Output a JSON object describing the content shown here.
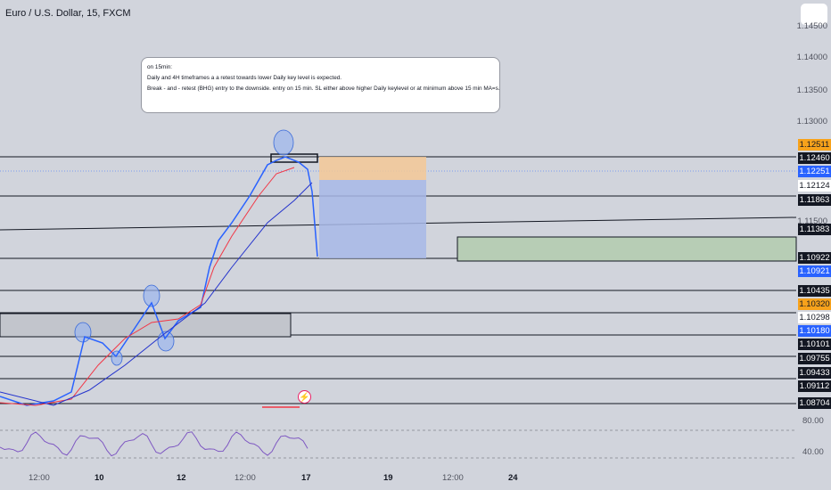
{
  "title": "Euro / U.S. Dollar, 15, FXCM",
  "note": {
    "line1": "on 15min:",
    "line2": "Daily and 4H timeframes a a retest towards lower Daily key level is expected.",
    "line3": "Break - and - retest (BHG) entry to the downside. entry on 15 min. SL either above higher Daily keylevel or at minimum above 15 min MA=s."
  },
  "price_ticks": [
    "1.14500",
    "1.14000",
    "1.13500",
    "1.13000",
    "1.11500"
  ],
  "price_badges": [
    {
      "label": "1.12511",
      "color": "#f7a21b",
      "text_color": "#131722"
    },
    {
      "label": "1.12460",
      "color": "#131722",
      "text_color": "#ffffff"
    },
    {
      "label": "1.12251",
      "color": "#2962ff",
      "text_color": "#ffffff"
    },
    {
      "label": "1.12124",
      "color": "#ffffff",
      "text_color": "#131722"
    },
    {
      "label": "1.11863",
      "color": "#131722",
      "text_color": "#ffffff"
    },
    {
      "label": "1.11383",
      "color": "#131722",
      "text_color": "#ffffff"
    },
    {
      "label": "1.10922",
      "color": "#131722",
      "text_color": "#ffffff"
    },
    {
      "label": "1.10921",
      "color": "#2962ff",
      "text_color": "#ffffff"
    },
    {
      "label": "1.10435",
      "color": "#131722",
      "text_color": "#ffffff"
    },
    {
      "label": "1.10320",
      "color": "#f7a21b",
      "text_color": "#131722"
    },
    {
      "label": "1.10298",
      "color": "#ffffff",
      "text_color": "#131722"
    },
    {
      "label": "1.10180",
      "color": "#2962ff",
      "text_color": "#ffffff"
    },
    {
      "label": "1.10101",
      "color": "#131722",
      "text_color": "#ffffff"
    },
    {
      "label": "1.09755",
      "color": "#131722",
      "text_color": "#ffffff"
    },
    {
      "label": "1.09433",
      "color": "#131722",
      "text_color": "#ffffff"
    },
    {
      "label": "1.09112",
      "color": "#131722",
      "text_color": "#ffffff"
    },
    {
      "label": "1.08704",
      "color": "#131722",
      "text_color": "#ffffff"
    }
  ],
  "time_ticks": [
    {
      "label": "12:00",
      "bold": false
    },
    {
      "label": "10",
      "bold": true
    },
    {
      "label": "12",
      "bold": true
    },
    {
      "label": "12:00",
      "bold": false
    },
    {
      "label": "17",
      "bold": true
    },
    {
      "label": "19",
      "bold": true
    },
    {
      "label": "12:00",
      "bold": false
    },
    {
      "label": "24",
      "bold": true
    }
  ],
  "rsi_ticks": [
    "80.00",
    "40.00"
  ],
  "colors": {
    "background": "#d1d4dc",
    "price_line": "#2962ff",
    "ma_fast": "#f23645",
    "ma_slow": "#2433cc",
    "stop_zone": "#f5c896",
    "target_zone": "#a8b9e8",
    "demand_zone": "#b7cdb5",
    "highlight_circle": "#9cb6ec",
    "rsi_line": "#7e57c2",
    "rsi_ma": "#f7a21b"
  },
  "icons": {
    "flash": "lightning-icon"
  }
}
